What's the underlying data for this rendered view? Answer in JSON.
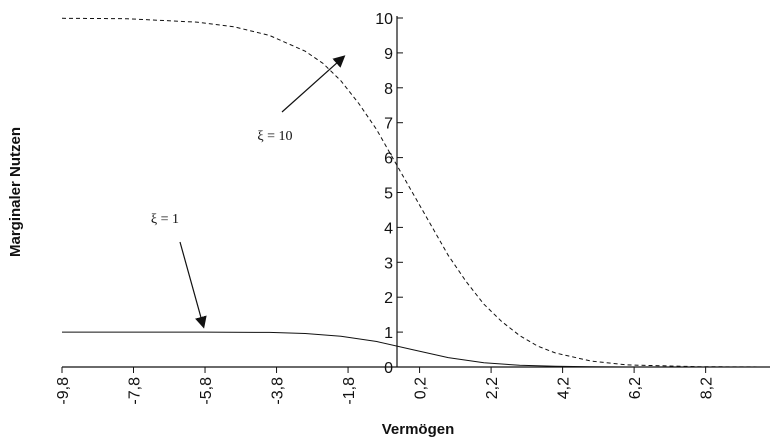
{
  "chart_data": {
    "type": "line",
    "xlabel": "Vermögen",
    "ylabel": "Marginaler Nutzen",
    "xlim": [
      -9.8,
      10.0
    ],
    "ylim": [
      0,
      10
    ],
    "x_tick_labels": [
      "-9,8",
      "-7,8",
      "-5,8",
      "-3,8",
      "-1,8",
      "0,2",
      "2,2",
      "4,2",
      "6,2",
      "8,2"
    ],
    "y_tick_labels": [
      "0",
      "1",
      "2",
      "3",
      "4",
      "5",
      "6",
      "7",
      "8",
      "9",
      "10"
    ],
    "grid": false,
    "legend": "none",
    "series": [
      {
        "name": "ξ = 10",
        "style": "dashed",
        "x": [
          -9.8,
          -8.0,
          -6.0,
          -5.0,
          -4.0,
          -3.0,
          -2.5,
          -2.0,
          -1.5,
          -1.0,
          -0.5,
          0.0,
          0.5,
          1.0,
          1.5,
          2.0,
          2.5,
          3.0,
          3.5,
          4.0,
          5.0,
          6.0,
          8.0,
          10.0
        ],
        "y": [
          9.99,
          9.98,
          9.88,
          9.75,
          9.5,
          9.05,
          8.7,
          8.2,
          7.55,
          6.8,
          5.9,
          5.0,
          4.1,
          3.2,
          2.45,
          1.8,
          1.3,
          0.9,
          0.6,
          0.4,
          0.17,
          0.06,
          0.01,
          0.0
        ]
      },
      {
        "name": "ξ = 1",
        "style": "solid",
        "x": [
          -9.8,
          -7.8,
          -5.8,
          -4.0,
          -3.0,
          -2.0,
          -1.0,
          0.0,
          1.0,
          2.0,
          3.0,
          4.0,
          5.0,
          6.0,
          8.0,
          10.0
        ],
        "y": [
          1.0,
          1.0,
          1.0,
          0.99,
          0.96,
          0.88,
          0.73,
          0.5,
          0.27,
          0.12,
          0.05,
          0.02,
          0.01,
          0.0,
          0.0,
          0.0
        ]
      }
    ],
    "annotations": [
      {
        "text": "ξ = 10",
        "points_to": [
          -1.8,
          9.0
        ]
      },
      {
        "text": "ξ = 1",
        "points_to": [
          -5.8,
          1.0
        ]
      }
    ]
  }
}
